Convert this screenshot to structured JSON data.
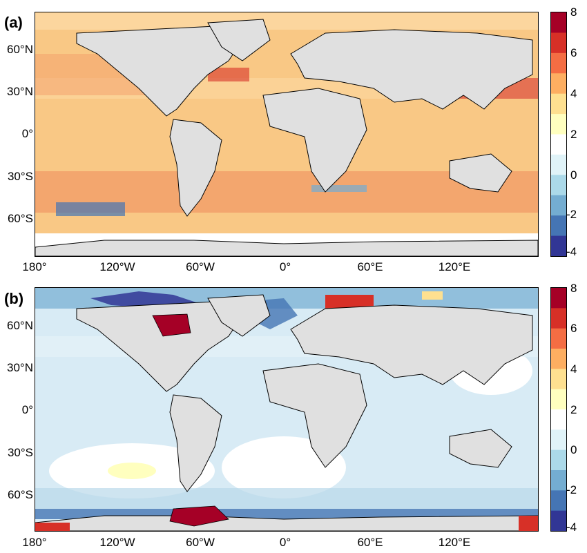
{
  "panels": [
    {
      "label": "(a)",
      "y_ticks": [
        "60°N",
        "30°N",
        "0°",
        "30°S",
        "60°S"
      ],
      "x_ticks": [
        "180°",
        "120°W",
        "60°W",
        "0°",
        "60°E",
        "120°E"
      ],
      "colorbar_ticks": [
        "8",
        "6",
        "4",
        "2",
        "0",
        "-2",
        "-4"
      ]
    },
    {
      "label": "(b)",
      "y_ticks": [
        "60°N",
        "30°N",
        "0°",
        "30°S",
        "60°S"
      ],
      "x_ticks": [
        "180°",
        "120°W",
        "60°W",
        "0°",
        "60°E",
        "120°E"
      ],
      "colorbar_ticks": [
        "8",
        "6",
        "4",
        "2",
        "0",
        "-2",
        "-4"
      ]
    }
  ],
  "colorbar": {
    "range": [
      -4,
      8
    ],
    "colors": [
      "#313695",
      "#4575b4",
      "#74add1",
      "#abd9e9",
      "#e0f3f8",
      "#ffffff",
      "#ffffbf",
      "#fee090",
      "#fdae61",
      "#f46d43",
      "#d73027",
      "#a50026"
    ]
  },
  "colors": {
    "land": "#e6e6e6",
    "ocean_a": "#f9c37f",
    "ocean_b": "#d5e9f4"
  }
}
